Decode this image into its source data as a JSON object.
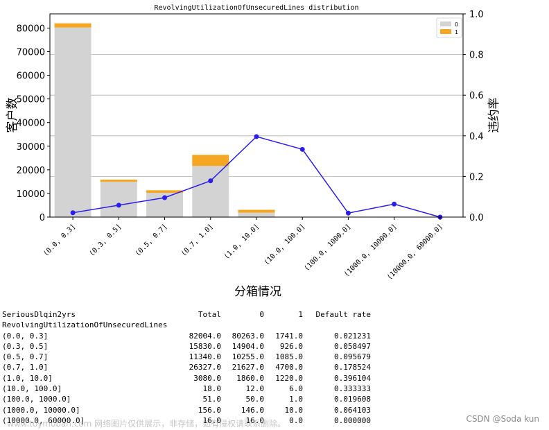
{
  "chart_data": {
    "type": "bar",
    "title": "RevolvingUtilizationOfUnsecuredLines distribution",
    "xlabel": "分箱情况",
    "ylabel": "客户数",
    "y2label": "违约率",
    "categories": [
      "(0.0, 0.3]",
      "(0.3, 0.5]",
      "(0.5, 0.7]",
      "(0.7, 1.0]",
      "(1.0, 10.0]",
      "(10.0, 100.0]",
      "(100.0, 1000.0]",
      "(1000.0, 10000.0]",
      "(10000.0, 60000.0]"
    ],
    "series": [
      {
        "name": "0",
        "values": [
          80263,
          14904,
          10255,
          21627,
          1860,
          12,
          50,
          146,
          16
        ],
        "color": "#d3d3d3"
      },
      {
        "name": "1",
        "values": [
          1741,
          926,
          1085,
          4700,
          1220,
          6,
          1,
          10,
          0
        ],
        "color": "#f5a623"
      }
    ],
    "line": {
      "values": [
        0.021231,
        0.058497,
        0.095679,
        0.178524,
        0.396104,
        0.333333,
        0.019608,
        0.064103,
        0.0
      ],
      "color": "#2b1eeb"
    },
    "ylim": [
      0,
      86000
    ],
    "y2lim": [
      0,
      1.0
    ],
    "yticks": [
      "0",
      "10000",
      "20000",
      "30000",
      "40000",
      "50000",
      "60000",
      "70000",
      "80000"
    ],
    "y2ticks": [
      "0.0",
      "0.2",
      "0.4",
      "0.6",
      "0.8",
      "1.0"
    ],
    "legend": "top-right",
    "grid": "y2"
  },
  "table": {
    "header1": [
      "SeriousDlqin2yrs",
      "Total",
      "0",
      "1",
      "Default rate"
    ],
    "header2": "RevolvingUtilizationOfUnsecuredLines",
    "rows": [
      [
        "(0.0, 0.3]",
        "82004.0",
        "80263.0",
        "1741.0",
        "0.021231"
      ],
      [
        "(0.3, 0.5]",
        "15830.0",
        "14904.0",
        "926.0",
        "0.058497"
      ],
      [
        "(0.5, 0.7]",
        "11340.0",
        "10255.0",
        "1085.0",
        "0.095679"
      ],
      [
        "(0.7, 1.0]",
        "26327.0",
        "21627.0",
        "4700.0",
        "0.178524"
      ],
      [
        "(1.0, 10.0]",
        "3080.0",
        "1860.0",
        "1220.0",
        "0.396104"
      ],
      [
        "(10.0, 100.0]",
        "18.0",
        "12.0",
        "6.0",
        "0.333333"
      ],
      [
        "(100.0, 1000.0]",
        "51.0",
        "50.0",
        "1.0",
        "0.019608"
      ],
      [
        "(1000.0, 10000.0]",
        "156.0",
        "146.0",
        "10.0",
        "0.064103"
      ],
      [
        "(10000.0, 60000.0]",
        "16.0",
        "16.0",
        "0.0",
        "0.000000"
      ]
    ]
  },
  "watermark": "www.toymoban.com 网络图片仅供展示，非存储，如有侵权请联系删除。",
  "credit": "CSDN @Soda kun"
}
